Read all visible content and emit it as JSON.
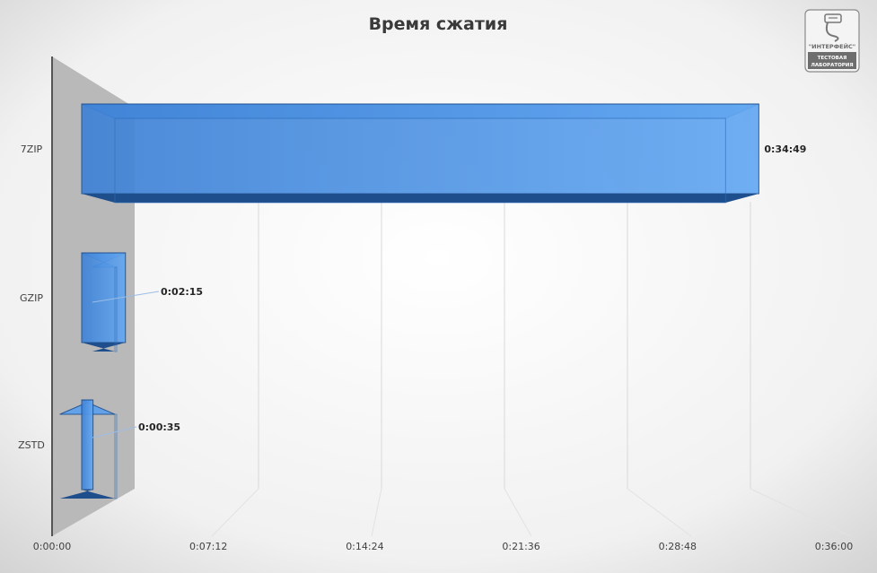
{
  "logo": {
    "line1": "\"ИНТЕРФЕЙС\"",
    "line2": "ТЕСТОВАЯ",
    "line3": "ЛАБОРАТОРИЯ"
  },
  "colors": {
    "bar_front": "#4a90e2",
    "bar_dark": "#1f4e8c",
    "back_wall": "#b7b7b7",
    "axis": "#555555"
  },
  "chart_data": {
    "type": "bar",
    "orientation": "horizontal",
    "style": "3d",
    "title": "Время сжатия",
    "categories": [
      "7ZIP",
      "GZIP",
      "ZSTD"
    ],
    "values": [
      2089,
      135,
      35
    ],
    "data_labels": [
      "0:34:49",
      "0:02:15",
      "0:00:35"
    ],
    "x_unit": "h:mm:ss",
    "xlim": [
      "0:00:00",
      "0:36:00"
    ],
    "x_ticks": [
      "0:00:00",
      "0:07:12",
      "0:14:24",
      "0:21:36",
      "0:28:48",
      "0:36:00"
    ],
    "grid": true,
    "legend": "none"
  }
}
